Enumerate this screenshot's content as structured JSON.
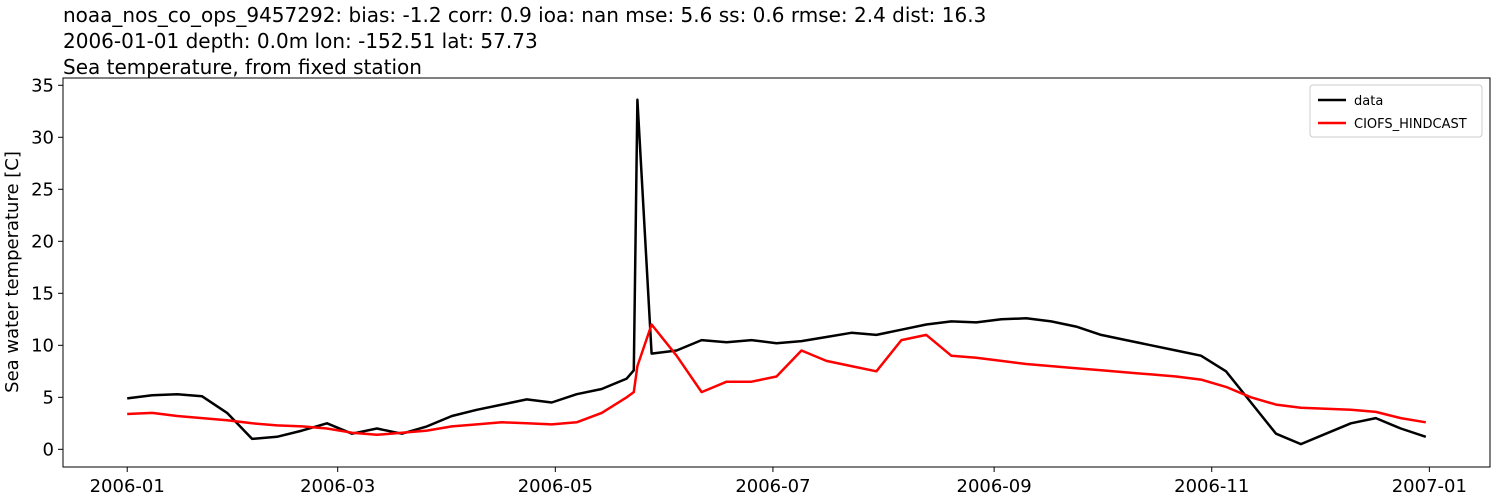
{
  "chart_data": {
    "type": "line",
    "title": [
      "noaa_nos_co_ops_9457292: bias: -1.2  corr: 0.9  ioa: nan  mse: 5.6  ss: 0.6  rmse: 2.4  dist: 16.3",
      "2006-01-01 depth: 0.0m lon: -152.51 lat: 57.73",
      "Sea temperature, from fixed station"
    ],
    "y_label": "Sea water temperature [C]",
    "legend": "upper right",
    "x": [
      "2006-01-01",
      "2006-01-08",
      "2006-01-15",
      "2006-01-22",
      "2006-01-29",
      "2006-02-05",
      "2006-02-12",
      "2006-02-19",
      "2006-02-26",
      "2006-03-05",
      "2006-03-12",
      "2006-03-19",
      "2006-03-26",
      "2006-04-02",
      "2006-04-09",
      "2006-04-16",
      "2006-04-23",
      "2006-04-30",
      "2006-05-07",
      "2006-05-14",
      "2006-05-21",
      "2006-05-23",
      "2006-05-24",
      "2006-05-28",
      "2006-06-04",
      "2006-06-11",
      "2006-06-18",
      "2006-06-25",
      "2006-07-02",
      "2006-07-09",
      "2006-07-16",
      "2006-07-23",
      "2006-07-30",
      "2006-08-06",
      "2006-08-13",
      "2006-08-20",
      "2006-08-27",
      "2006-09-03",
      "2006-09-10",
      "2006-09-17",
      "2006-09-24",
      "2006-10-01",
      "2006-10-08",
      "2006-10-15",
      "2006-10-22",
      "2006-10-29",
      "2006-11-05",
      "2006-11-12",
      "2006-11-19",
      "2006-11-26",
      "2006-12-03",
      "2006-12-10",
      "2006-12-17",
      "2006-12-24",
      "2006-12-31"
    ],
    "series": [
      {
        "name": "data",
        "color": "#000000",
        "values": [
          4.9,
          5.2,
          5.3,
          5.1,
          3.5,
          1.0,
          1.2,
          1.8,
          2.5,
          1.5,
          2.0,
          1.5,
          2.2,
          3.2,
          3.8,
          4.3,
          4.8,
          4.5,
          5.3,
          5.8,
          6.8,
          7.6,
          33.6,
          9.2,
          9.5,
          10.5,
          10.3,
          10.5,
          10.2,
          10.4,
          10.8,
          11.2,
          11.0,
          11.5,
          12.0,
          12.3,
          12.2,
          12.5,
          12.6,
          12.3,
          11.8,
          11.0,
          10.5,
          10.0,
          9.5,
          9.0,
          7.5,
          4.5,
          1.5,
          0.5,
          1.5,
          2.5,
          3.0,
          2.0,
          1.2
        ]
      },
      {
        "name": "CIOFS_HINDCAST",
        "color": "#ff0000",
        "values": [
          3.4,
          3.5,
          3.2,
          3.0,
          2.8,
          2.5,
          2.3,
          2.2,
          2.0,
          1.6,
          1.4,
          1.6,
          1.8,
          2.2,
          2.4,
          2.6,
          2.5,
          2.4,
          2.6,
          3.5,
          5.0,
          5.5,
          8.0,
          12.0,
          9.0,
          5.5,
          6.5,
          6.5,
          7.0,
          9.5,
          8.5,
          8.0,
          7.5,
          10.5,
          11.0,
          9.0,
          8.8,
          8.5,
          8.2,
          8.0,
          7.8,
          7.6,
          7.4,
          7.2,
          7.0,
          6.7,
          6.0,
          5.0,
          4.3,
          4.0,
          3.9,
          3.8,
          3.6,
          3.0,
          2.6
        ]
      }
    ],
    "xlim": [
      "2005-12-14",
      "2007-01-18"
    ],
    "xticks": [
      {
        "value": "2006-01-01",
        "label": "2006-01"
      },
      {
        "value": "2006-03-01",
        "label": "2006-03"
      },
      {
        "value": "2006-05-01",
        "label": "2006-05"
      },
      {
        "value": "2006-07-01",
        "label": "2006-07"
      },
      {
        "value": "2006-09-01",
        "label": "2006-09"
      },
      {
        "value": "2006-11-01",
        "label": "2006-11"
      },
      {
        "value": "2007-01-01",
        "label": "2007-01"
      }
    ],
    "ylim": [
      -1.7,
      35.7
    ],
    "yticks": [
      0,
      5,
      10,
      15,
      20,
      25,
      30,
      35
    ]
  }
}
